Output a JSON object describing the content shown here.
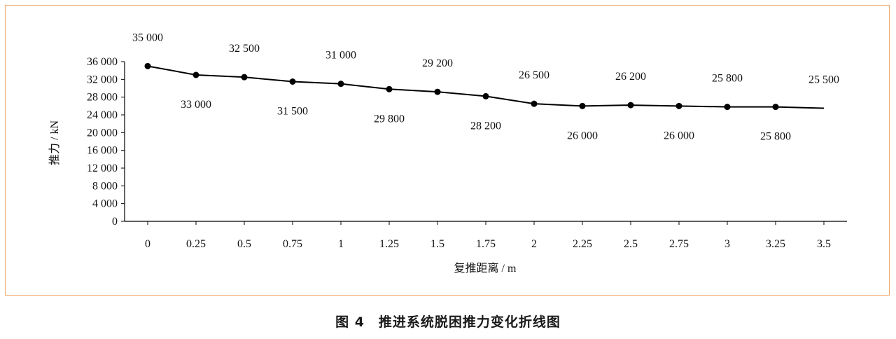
{
  "chart_data": {
    "type": "line",
    "title": "",
    "xlabel": "复推距离 / m",
    "ylabel": "推力 / kN",
    "x": [
      "0",
      "0.25",
      "0.5",
      "0.75",
      "1",
      "1.25",
      "1.5",
      "1.75",
      "2",
      "2.25",
      "2.5",
      "2.75",
      "3",
      "3.25",
      "3.5"
    ],
    "values": [
      35000,
      33000,
      32500,
      31500,
      31000,
      29800,
      29200,
      28200,
      26500,
      26000,
      26200,
      26000,
      25800,
      25800,
      25500
    ],
    "data_labels": [
      "35 000",
      "33 000",
      "32 500",
      "31 500",
      "31 000",
      "29 800",
      "29 200",
      "28 200",
      "26 500",
      "26 000",
      "26 200",
      "26 000",
      "25 800",
      "25 800",
      "25 500"
    ],
    "yticks": [
      "0",
      "4 000",
      "8 000",
      "12 000",
      "16 000",
      "20 000",
      "24 000",
      "28 000",
      "32 000",
      "36 000"
    ],
    "ylim": [
      0,
      36000
    ],
    "grid": false,
    "legend": "none",
    "line_color": "#000000",
    "frame_color": "#f0a868"
  },
  "caption": "图 4　推进系统脱困推力变化折线图"
}
